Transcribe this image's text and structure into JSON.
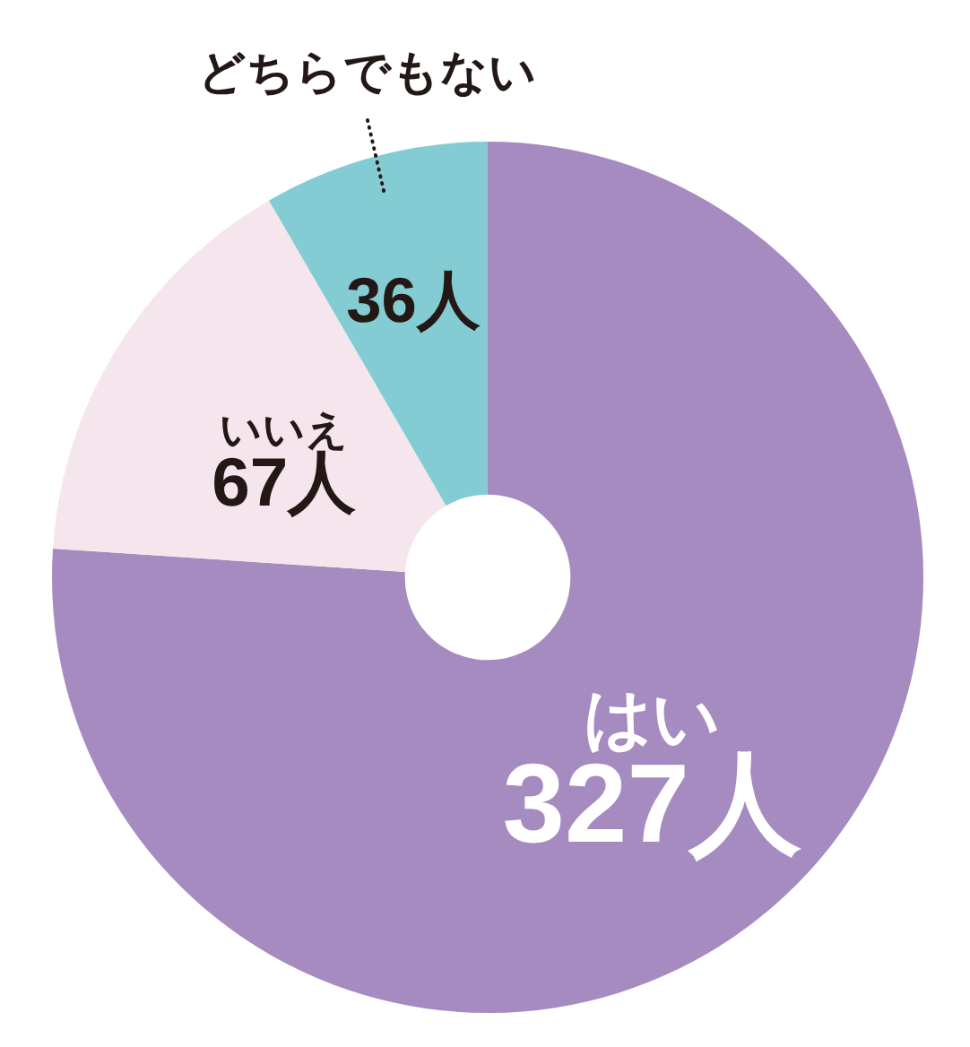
{
  "chart_data": {
    "type": "donut",
    "categories": [
      "はい",
      "いいえ",
      "どちらでもない"
    ],
    "values": [
      327,
      67,
      36
    ],
    "colors": [
      "#a68bc1",
      "#f4e6ec",
      "#84ccd3"
    ],
    "value_labels": [
      "327人",
      "67人",
      "36人"
    ]
  }
}
